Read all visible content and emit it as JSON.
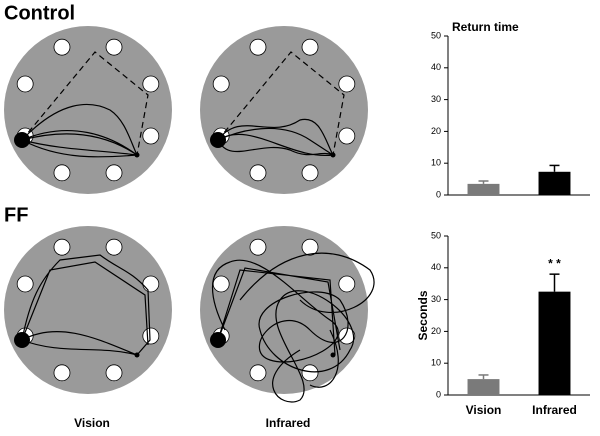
{
  "row_labels": [
    "Control",
    "FF"
  ],
  "column_labels": [
    "Vision",
    "Infrared"
  ],
  "chart_data": [
    {
      "type": "bar",
      "title": "Return time",
      "categories": [
        null,
        null
      ],
      "values": [
        3.5,
        7.3
      ],
      "errors": [
        0.9,
        2.0
      ],
      "colors": [
        "#7a7a7a",
        "#000000"
      ],
      "ylim": [
        0,
        50
      ],
      "yticks": [
        0,
        10,
        20,
        30,
        40,
        50
      ],
      "grid": false
    },
    {
      "type": "bar",
      "ylabel": "Seconds",
      "categories": [
        "Vision",
        "Infrared"
      ],
      "values": [
        5.0,
        32.5
      ],
      "errors": [
        1.3,
        5.5
      ],
      "colors": [
        "#7a7a7a",
        "#000000"
      ],
      "annotation": "* *",
      "ylim": [
        0,
        50
      ],
      "yticks": [
        0,
        10,
        20,
        30,
        40,
        50
      ],
      "grid": false
    }
  ]
}
